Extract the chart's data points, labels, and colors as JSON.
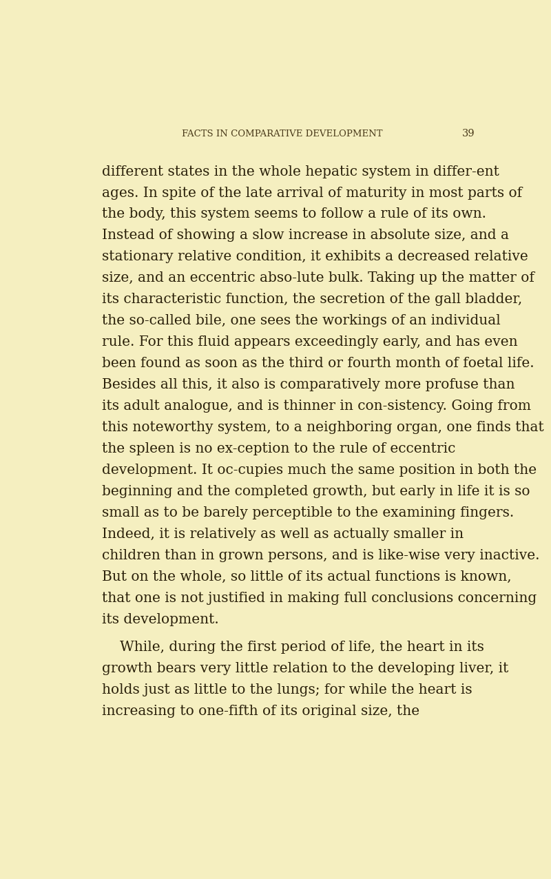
{
  "background_color": "#f5efc0",
  "header_text": "FACTS IN COMPARATIVE DEVELOPMENT",
  "page_number": "39",
  "header_fontsize": 9.5,
  "header_color": "#4a3a1a",
  "body_color": "#2a200a",
  "body_fontsize": 14.5,
  "paragraphs": [
    {
      "indent": false,
      "text": "different states in the whole hepatic system in differ-ent ages.  In spite of the late arrival of maturity in most parts of the body, this system seems to follow a rule of its own.  Instead of showing a slow increase in absolute size, and a stationary relative condition, it exhibits a decreased relative size, and an eccentric abso-lute bulk.  Taking up the matter of its characteristic function, the secretion of the gall bladder, the so-called bile, one sees the workings of an individual rule.  For this fluid appears exceedingly early, and has even been found as soon as the third or fourth month of foetal life.  Besides all this, it also is comparatively more profuse than its adult analogue, and is thinner in con-sistency.  Going from this noteworthy system, to a neighboring organ, one finds that the spleen is no ex-ception to the rule of eccentric development.  It oc-cupies much the same position in both the beginning and the completed growth, but early in life it is so small as to be barely perceptible to the examining fingers.  Indeed, it is relatively as well as actually smaller in children than in grown persons, and is like-wise very inactive.  But on the whole, so little of its actual functions is known, that one is not justified in making full conclusions concerning its development."
    },
    {
      "indent": true,
      "text": "While, during the first period of life, the heart in its growth bears very little relation to the developing liver, it holds just as little to the lungs; for while the heart is increasing to one-fifth of its original size, the"
    }
  ]
}
